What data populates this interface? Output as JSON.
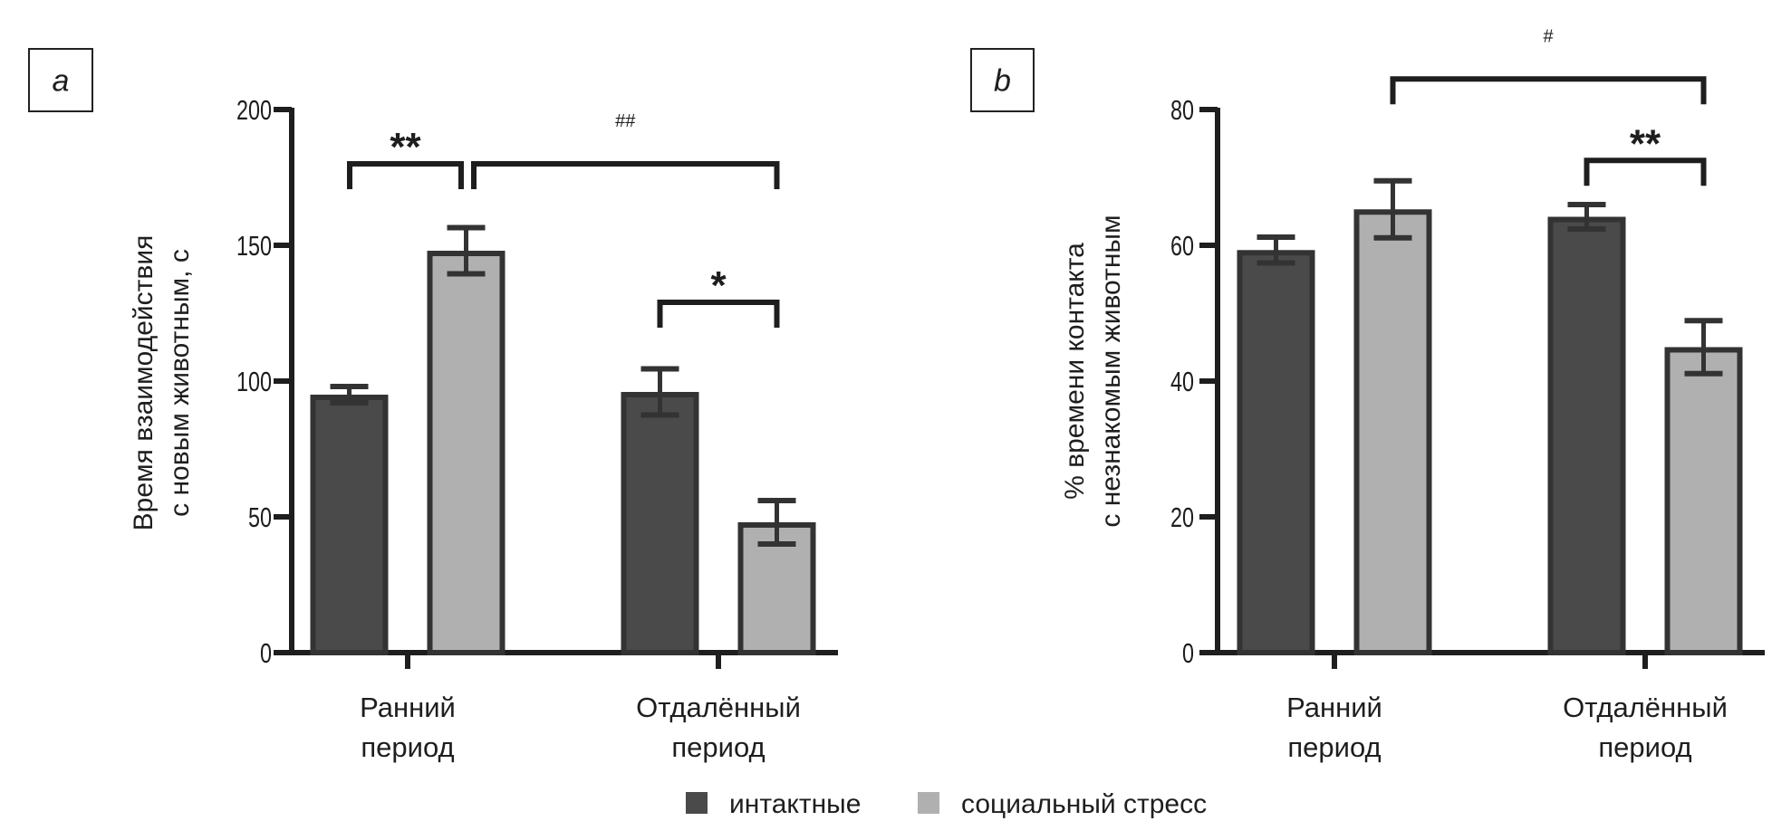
{
  "chart_data": [
    {
      "type": "bar",
      "panel": "a",
      "title": "",
      "xlabel": "",
      "ylabel": [
        "Время взаимодействия",
        "с новым животным, с"
      ],
      "categories": [
        [
          "Ранний",
          "период"
        ],
        [
          "Отдалённый",
          "период"
        ]
      ],
      "yticks": [
        0,
        50,
        100,
        150,
        200
      ],
      "ylim": [
        0,
        200
      ],
      "grid": false,
      "series": [
        {
          "name": "интактные",
          "color": "#4a4a4a",
          "values": [
            95,
            96
          ],
          "error": [
            3,
            8.5
          ]
        },
        {
          "name": "социальный стресс",
          "color": "#b0b0b0",
          "values": [
            148,
            48
          ],
          "error": [
            8.5,
            8
          ]
        }
      ],
      "annotations": [
        {
          "label": "**",
          "type": "star",
          "from": [
            0,
            0
          ],
          "to": [
            0,
            1
          ],
          "level": 180
        },
        {
          "label": "##",
          "type": "hash",
          "from": [
            0,
            1
          ],
          "to": [
            1,
            1
          ],
          "level": 180
        },
        {
          "label": "*",
          "type": "star",
          "from": [
            1,
            0
          ],
          "to": [
            1,
            1
          ],
          "level": 129
        }
      ]
    },
    {
      "type": "bar",
      "panel": "b",
      "title": "",
      "xlabel": "",
      "ylabel": [
        "% времени контакта",
        "с незнакомым животным"
      ],
      "categories": [
        [
          "Ранний",
          "период"
        ],
        [
          "Отдалённый",
          "период"
        ]
      ],
      "yticks": [
        0,
        20,
        40,
        60,
        80
      ],
      "ylim": [
        0,
        80
      ],
      "grid": false,
      "series": [
        {
          "name": "интактные",
          "color": "#4a4a4a",
          "values": [
            59.3,
            64.2
          ],
          "error": [
            1.9,
            1.8
          ]
        },
        {
          "name": "социальный стресс",
          "color": "#b0b0b0",
          "values": [
            65.3,
            45
          ],
          "error": [
            4.2,
            3.9
          ]
        }
      ],
      "annotations": [
        {
          "label": "#",
          "type": "hash",
          "from": [
            0,
            1
          ],
          "to": [
            1,
            1
          ],
          "level": 84.5
        },
        {
          "label": "**",
          "type": "star",
          "from": [
            1,
            0
          ],
          "to": [
            1,
            1
          ],
          "level": 72.5
        }
      ]
    }
  ],
  "legend": {
    "position": "bottom-center",
    "items": [
      {
        "label": "интактные",
        "color": "#4a4a4a"
      },
      {
        "label": "социальный стресс",
        "color": "#b0b0b0"
      }
    ]
  }
}
